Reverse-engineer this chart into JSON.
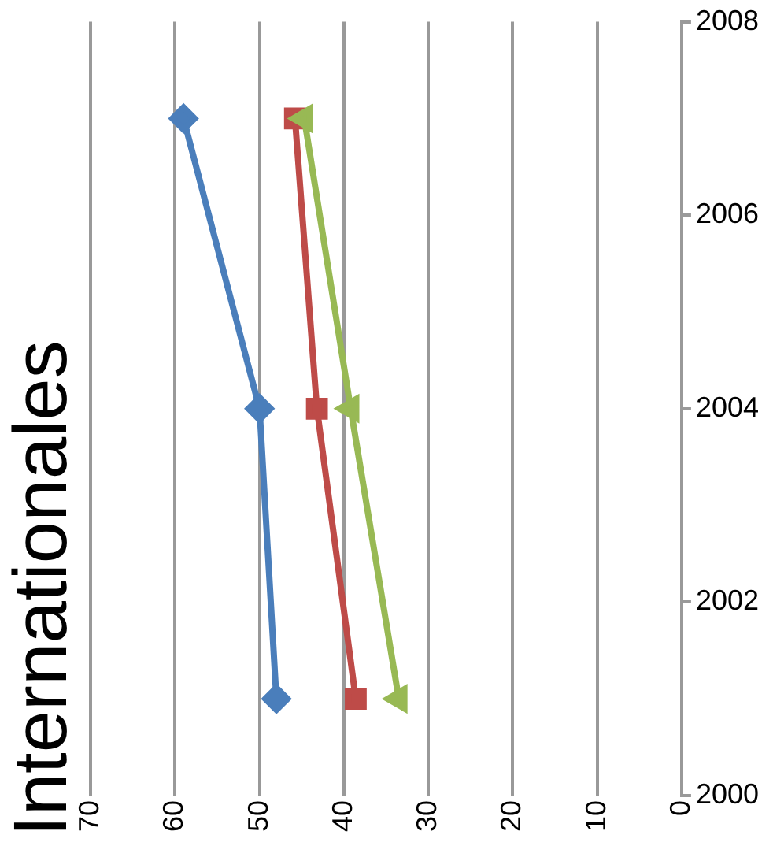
{
  "chart_data": {
    "type": "line",
    "title": "Internationales",
    "series": [
      {
        "color": "#4a7ebb",
        "x": [
          48,
          50,
          59
        ],
        "values": [
          2001,
          2004,
          2007
        ],
        "marker": "diamond"
      },
      {
        "color": "#be4b48",
        "x": [
          38.6,
          43.2,
          45.8
        ],
        "values": [
          2001,
          2004,
          2007
        ],
        "marker": "square"
      },
      {
        "color": "#98b954",
        "x": [
          33.5,
          39.2,
          44.7
        ],
        "values": [
          2001,
          2004,
          2007
        ],
        "marker": "triangle"
      }
    ],
    "xlim": [
      70,
      0
    ],
    "xticks": [
      70,
      60,
      50,
      40,
      30,
      20,
      10,
      0
    ],
    "ylim": [
      2000,
      2008
    ],
    "yticks": [
      2000,
      2002,
      2004,
      2006,
      2008
    ],
    "grid": "x",
    "legend": false
  }
}
